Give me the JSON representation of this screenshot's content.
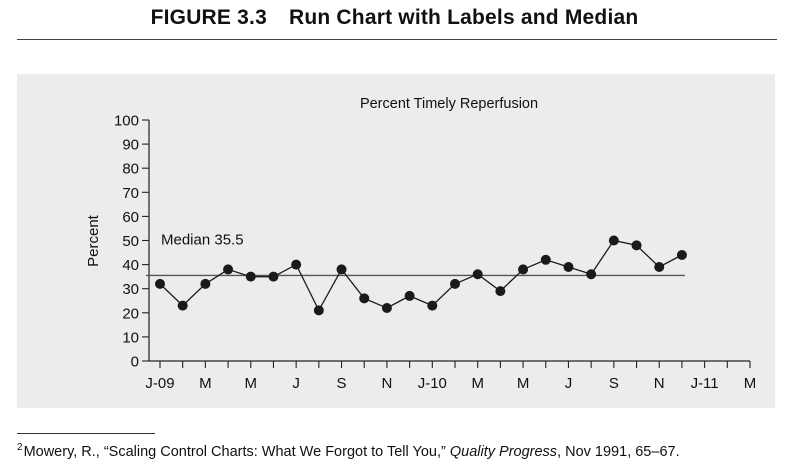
{
  "figure": {
    "number": "FIGURE 3.3",
    "title": "Run Chart with Labels and Median"
  },
  "chart_data": {
    "type": "line",
    "title": "Percent Timely Reperfusion",
    "ylabel": "Percent",
    "xlabel": "",
    "ylim": [
      0,
      100
    ],
    "y_ticks": [
      "0",
      "10",
      "20",
      "30",
      "40",
      "50",
      "60",
      "70",
      "80",
      "90",
      "100"
    ],
    "x_tick_count": 27,
    "x_tick_labels": [
      {
        "tick": 0,
        "label": "J-09"
      },
      {
        "tick": 2,
        "label": "M"
      },
      {
        "tick": 4,
        "label": "M"
      },
      {
        "tick": 6,
        "label": "J"
      },
      {
        "tick": 8,
        "label": "S"
      },
      {
        "tick": 10,
        "label": "N"
      },
      {
        "tick": 12,
        "label": "J-10"
      },
      {
        "tick": 14,
        "label": "M"
      },
      {
        "tick": 16,
        "label": "M"
      },
      {
        "tick": 18,
        "label": "J"
      },
      {
        "tick": 20,
        "label": "S"
      },
      {
        "tick": 22,
        "label": "N"
      },
      {
        "tick": 24,
        "label": "J-11"
      },
      {
        "tick": 26,
        "label": "M"
      }
    ],
    "series": [
      {
        "values": [
          32,
          23,
          32,
          38,
          35,
          35,
          40,
          21,
          38,
          26,
          22,
          27,
          23,
          32,
          36,
          29,
          38,
          42,
          39,
          36,
          50,
          48,
          39,
          44
        ]
      }
    ],
    "median": {
      "value": 35.5,
      "label": "Median 35.5"
    },
    "grid": false,
    "colors": {
      "line": "#1a1a1a",
      "marker": "#1a1a1a",
      "median": "#555555",
      "background": "#ececec"
    }
  },
  "footnote": {
    "marker": "2",
    "text_before": "Mowery, R., “Scaling Control Charts: What We Forgot to Tell You,” ",
    "journal": "Quality Progress",
    "text_after": ", Nov 1991, 65–67."
  }
}
